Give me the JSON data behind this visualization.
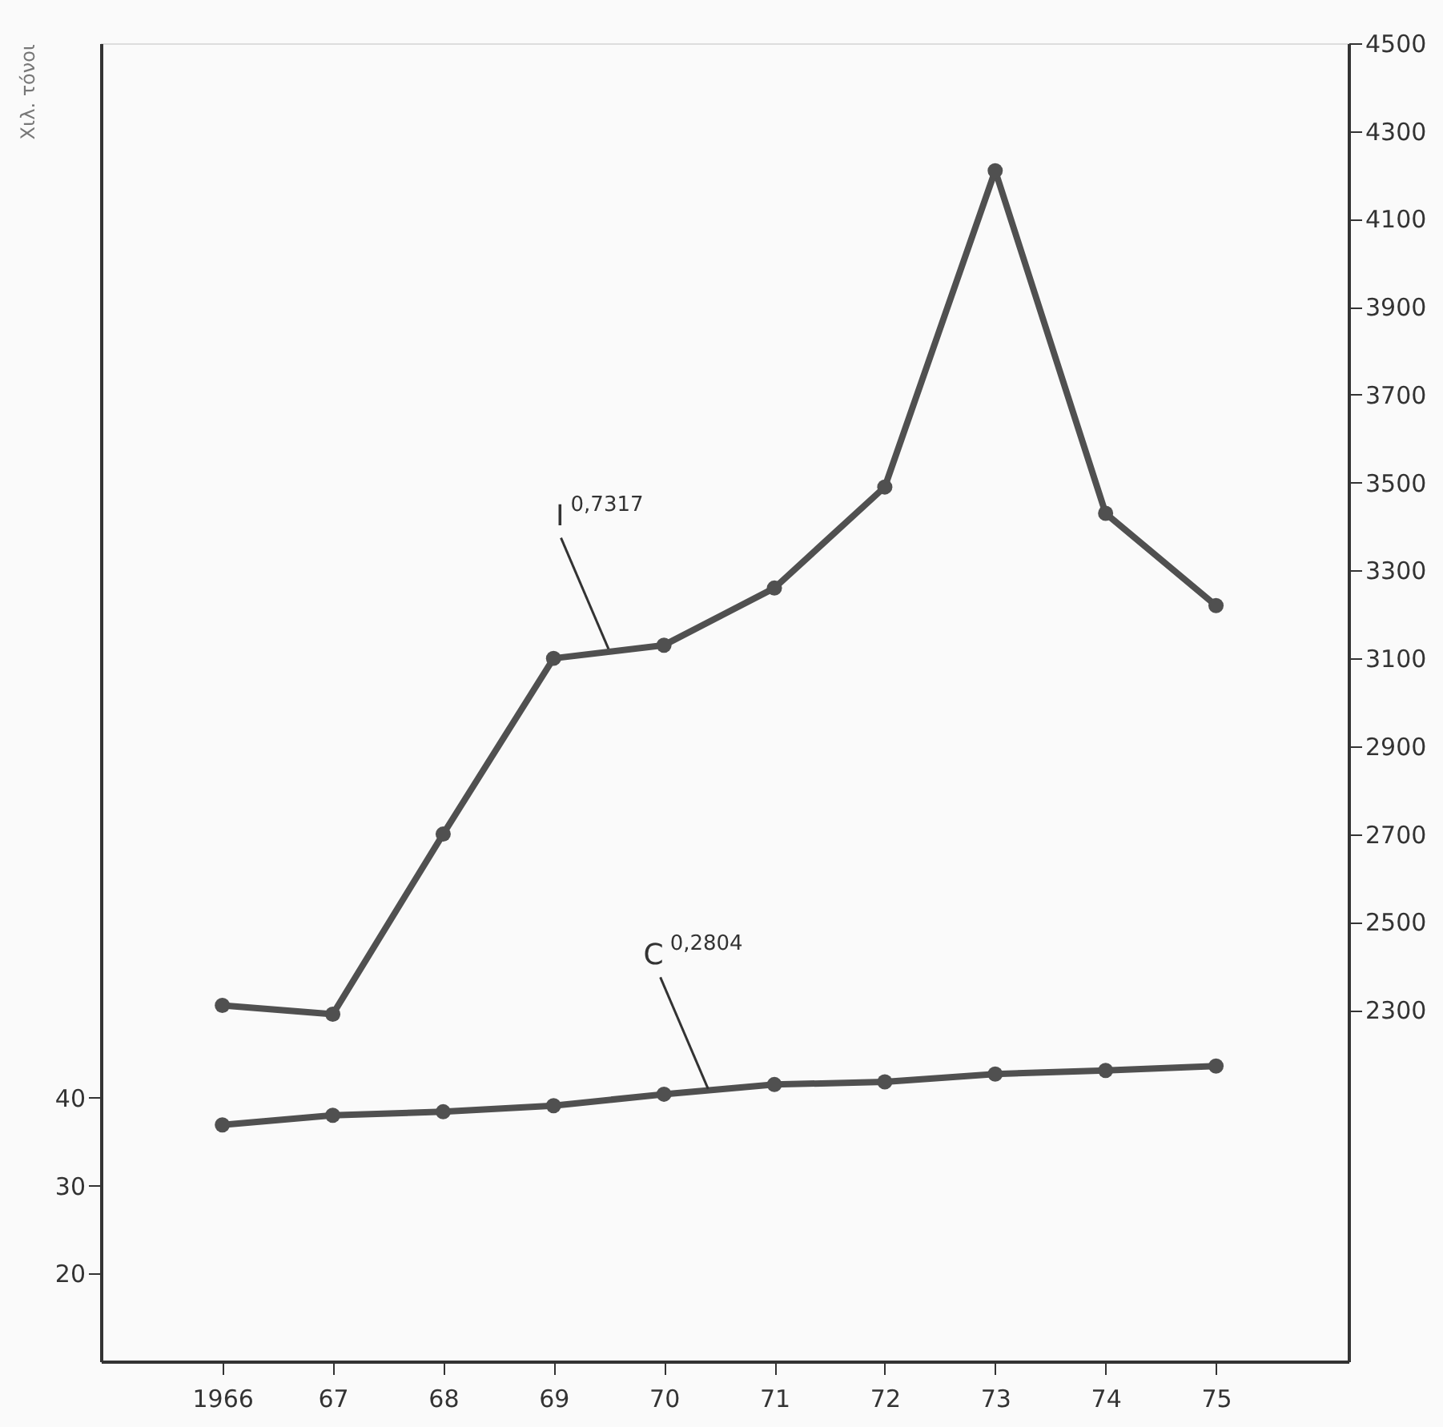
{
  "chart_data": {
    "type": "line",
    "ylabel": "Χιλ. τόνοι",
    "x": [
      1966,
      1967,
      1968,
      1969,
      1970,
      1971,
      1972,
      1973,
      1974,
      1975
    ],
    "xlim": [
      1964.9,
      1976.2
    ],
    "xticks": [
      {
        "value": 1966,
        "label": "1966"
      },
      {
        "value": 1967,
        "label": "67"
      },
      {
        "value": 1968,
        "label": "68"
      },
      {
        "value": 1969,
        "label": "69"
      },
      {
        "value": 1970,
        "label": "70"
      },
      {
        "value": 1971,
        "label": "71"
      },
      {
        "value": 1972,
        "label": "72"
      },
      {
        "value": 1973,
        "label": "73"
      },
      {
        "value": 1974,
        "label": "74"
      },
      {
        "value": 1975,
        "label": "75"
      }
    ],
    "ylim": [
      10,
      160
    ],
    "yticks": [
      20,
      30,
      40
    ],
    "y2lim": [
      1500,
      4500
    ],
    "y2ticks": [
      2300,
      2500,
      2700,
      2900,
      3100,
      3300,
      3500,
      3700,
      3900,
      4100,
      4300,
      4500
    ],
    "series": [
      {
        "color": "#505050",
        "axis": "y2",
        "values": [
          2310,
          2290,
          2700,
          3100,
          3130,
          3260,
          3490,
          4210,
          3430,
          3220
        ]
      },
      {
        "color": "#505050",
        "axis": "y",
        "values": [
          36.9,
          38.0,
          38.4,
          39.1,
          40.4,
          41.5,
          41.8,
          42.7,
          43.1,
          43.6
        ]
      }
    ],
    "annotations": [
      {
        "text": "I$^{0,7317}$",
        "x": 1969.5,
        "y": 91
      },
      {
        "text": "C$^{0,2804}$",
        "x": 1970.4,
        "y": 41
      }
    ],
    "marker": "circle",
    "line_style": "solid",
    "grid": false,
    "legend": false
  }
}
